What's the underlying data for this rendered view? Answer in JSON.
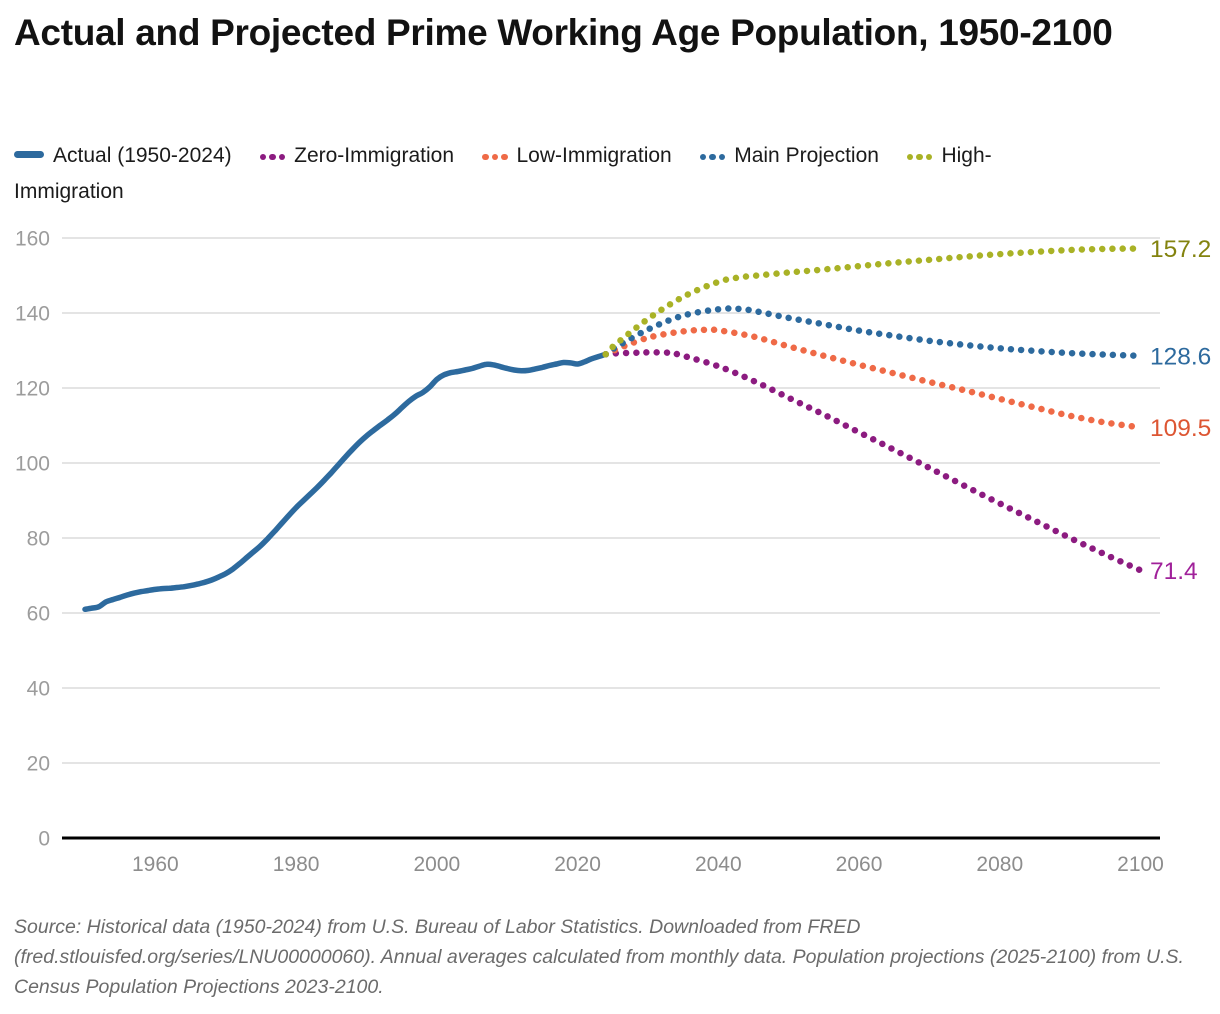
{
  "title": "Actual and Projected Prime Working Age Population, 1950-2100",
  "source_note": "Source: Historical data (1950-2024) from U.S. Bureau of Labor Statistics. Downloaded from FRED (fred.stlouisfed.org/series/LNU00000060). Annual averages calculated from monthly data. Population projections (2025-2100) from U.S. Census Population Projections 2023-2100.",
  "chart_data": {
    "type": "line",
    "title": "Actual and Projected Prime Working Age Population, 1950-2100",
    "xlabel": "",
    "ylabel": "",
    "xlim": [
      1950,
      2100
    ],
    "ylim": [
      0,
      160
    ],
    "x_ticks": [
      1960,
      1980,
      2000,
      2020,
      2040,
      2060,
      2080,
      2100
    ],
    "y_ticks": [
      0,
      20,
      40,
      60,
      80,
      100,
      120,
      140,
      160
    ],
    "grid": true,
    "legend_position": "top",
    "series": [
      {
        "name": "Actual (1950-2024)",
        "style": "solid",
        "color": "#2d6a9e",
        "points": [
          [
            1950,
            61.0
          ],
          [
            1951,
            61.3
          ],
          [
            1952,
            61.7
          ],
          [
            1953,
            63.0
          ],
          [
            1954,
            63.6
          ],
          [
            1955,
            64.2
          ],
          [
            1956,
            64.8
          ],
          [
            1957,
            65.3
          ],
          [
            1958,
            65.7
          ],
          [
            1959,
            66.0
          ],
          [
            1960,
            66.3
          ],
          [
            1961,
            66.5
          ],
          [
            1962,
            66.6
          ],
          [
            1963,
            66.8
          ],
          [
            1964,
            67.0
          ],
          [
            1965,
            67.3
          ],
          [
            1966,
            67.7
          ],
          [
            1967,
            68.2
          ],
          [
            1968,
            68.8
          ],
          [
            1969,
            69.6
          ],
          [
            1970,
            70.5
          ],
          [
            1971,
            71.7
          ],
          [
            1972,
            73.2
          ],
          [
            1973,
            74.8
          ],
          [
            1974,
            76.4
          ],
          [
            1975,
            78.0
          ],
          [
            1976,
            79.9
          ],
          [
            1977,
            81.9
          ],
          [
            1978,
            84.0
          ],
          [
            1979,
            86.1
          ],
          [
            1980,
            88.1
          ],
          [
            1981,
            89.9
          ],
          [
            1982,
            91.7
          ],
          [
            1983,
            93.5
          ],
          [
            1984,
            95.4
          ],
          [
            1985,
            97.4
          ],
          [
            1986,
            99.5
          ],
          [
            1987,
            101.6
          ],
          [
            1988,
            103.6
          ],
          [
            1989,
            105.5
          ],
          [
            1990,
            107.2
          ],
          [
            1991,
            108.7
          ],
          [
            1992,
            110.1
          ],
          [
            1993,
            111.5
          ],
          [
            1994,
            113.0
          ],
          [
            1995,
            114.7
          ],
          [
            1996,
            116.4
          ],
          [
            1997,
            117.8
          ],
          [
            1998,
            118.8
          ],
          [
            1999,
            120.3
          ],
          [
            2000,
            122.3
          ],
          [
            2001,
            123.5
          ],
          [
            2002,
            124.1
          ],
          [
            2003,
            124.4
          ],
          [
            2004,
            124.8
          ],
          [
            2005,
            125.2
          ],
          [
            2006,
            125.8
          ],
          [
            2007,
            126.3
          ],
          [
            2008,
            126.2
          ],
          [
            2009,
            125.7
          ],
          [
            2010,
            125.2
          ],
          [
            2011,
            124.8
          ],
          [
            2012,
            124.6
          ],
          [
            2013,
            124.7
          ],
          [
            2014,
            125.1
          ],
          [
            2015,
            125.5
          ],
          [
            2016,
            126.0
          ],
          [
            2017,
            126.4
          ],
          [
            2018,
            126.8
          ],
          [
            2019,
            126.7
          ],
          [
            2020,
            126.4
          ],
          [
            2021,
            127.0
          ],
          [
            2022,
            127.8
          ],
          [
            2023,
            128.4
          ],
          [
            2024,
            129.0
          ]
        ]
      },
      {
        "name": "Zero-Immigration",
        "style": "dotted",
        "color": "#8c1b80",
        "label_color": "#a0219a",
        "end_label": "71.4",
        "points": [
          [
            2024,
            129.0
          ],
          [
            2025,
            129.2
          ],
          [
            2028,
            129.4
          ],
          [
            2030,
            129.5
          ],
          [
            2033,
            129.4
          ],
          [
            2035,
            128.6
          ],
          [
            2040,
            125.8
          ],
          [
            2045,
            121.9
          ],
          [
            2050,
            117.4
          ],
          [
            2055,
            112.9
          ],
          [
            2060,
            108.2
          ],
          [
            2065,
            103.5
          ],
          [
            2070,
            98.7
          ],
          [
            2075,
            93.9
          ],
          [
            2080,
            89.2
          ],
          [
            2085,
            84.6
          ],
          [
            2090,
            80.0
          ],
          [
            2095,
            75.6
          ],
          [
            2100,
            71.4
          ]
        ]
      },
      {
        "name": "Low-Immigration",
        "style": "dotted",
        "color": "#ef6a47",
        "label_color": "#dd5633",
        "end_label": "109.5",
        "points": [
          [
            2024,
            129.0
          ],
          [
            2025,
            129.9
          ],
          [
            2030,
            133.4
          ],
          [
            2035,
            135.1
          ],
          [
            2038,
            135.5
          ],
          [
            2040,
            135.4
          ],
          [
            2045,
            133.7
          ],
          [
            2050,
            131.1
          ],
          [
            2055,
            128.6
          ],
          [
            2060,
            126.2
          ],
          [
            2065,
            123.9
          ],
          [
            2070,
            121.6
          ],
          [
            2075,
            119.4
          ],
          [
            2080,
            117.1
          ],
          [
            2085,
            114.8
          ],
          [
            2090,
            112.6
          ],
          [
            2095,
            110.8
          ],
          [
            2100,
            109.5
          ]
        ]
      },
      {
        "name": "Main Projection",
        "style": "dotted",
        "color": "#2d6a9e",
        "label_color": "#2d6a9e",
        "end_label": "128.6",
        "points": [
          [
            2024,
            129.0
          ],
          [
            2025,
            130.4
          ],
          [
            2030,
            135.6
          ],
          [
            2035,
            139.3
          ],
          [
            2040,
            141.0
          ],
          [
            2043,
            141.1
          ],
          [
            2045,
            140.6
          ],
          [
            2050,
            138.7
          ],
          [
            2055,
            137.0
          ],
          [
            2060,
            135.3
          ],
          [
            2065,
            133.9
          ],
          [
            2070,
            132.6
          ],
          [
            2075,
            131.5
          ],
          [
            2080,
            130.6
          ],
          [
            2085,
            129.9
          ],
          [
            2090,
            129.3
          ],
          [
            2095,
            128.9
          ],
          [
            2100,
            128.6
          ]
        ]
      },
      {
        "name": "High-Immigration",
        "style": "dotted",
        "color": "#a9b226",
        "label_color": "#83830f",
        "end_label": "157.2",
        "points": [
          [
            2024,
            129.0
          ],
          [
            2025,
            131.0
          ],
          [
            2030,
            138.4
          ],
          [
            2035,
            144.3
          ],
          [
            2040,
            148.3
          ],
          [
            2043,
            149.5
          ],
          [
            2045,
            149.9
          ],
          [
            2050,
            150.8
          ],
          [
            2055,
            151.6
          ],
          [
            2060,
            152.5
          ],
          [
            2065,
            153.4
          ],
          [
            2070,
            154.2
          ],
          [
            2075,
            155.0
          ],
          [
            2080,
            155.7
          ],
          [
            2085,
            156.3
          ],
          [
            2090,
            156.8
          ],
          [
            2095,
            157.1
          ],
          [
            2100,
            157.2
          ]
        ]
      }
    ]
  }
}
